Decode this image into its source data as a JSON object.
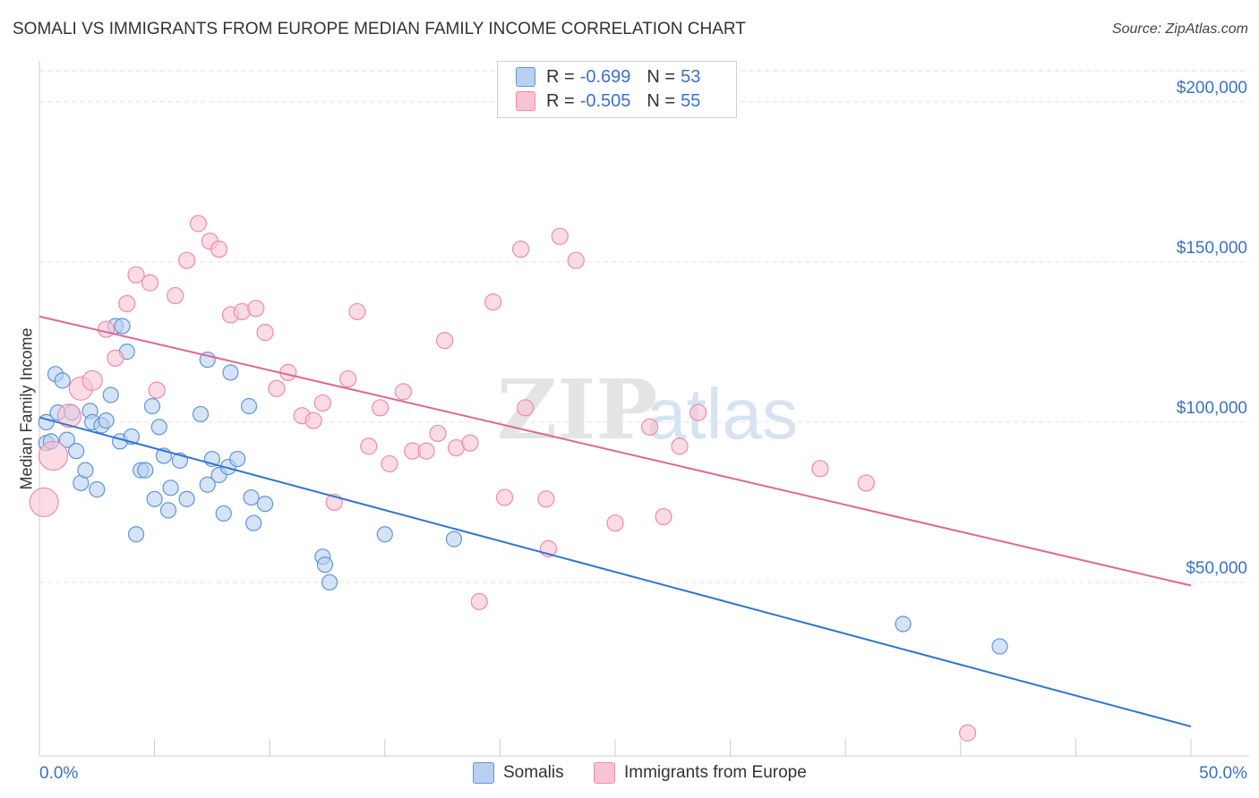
{
  "title": "SOMALI VS IMMIGRANTS FROM EUROPE MEDIAN FAMILY INCOME CORRELATION CHART",
  "source": "Source: ZipAtlas.com",
  "watermark": {
    "zip": "ZIP",
    "atlas": "atlas"
  },
  "legend": {
    "rows": [
      {
        "r_label": "R =",
        "r_value": "-0.699",
        "n_label": "N =",
        "n_value": "53"
      },
      {
        "r_label": "R =",
        "r_value": "-0.505",
        "n_label": "N =",
        "n_value": "55"
      }
    ]
  },
  "colors": {
    "somalis_fill": "#b9d0f2",
    "somalis_stroke": "#5f95d9",
    "somalis_line": "#2f74d0",
    "europe_fill": "#f8c4d4",
    "europe_stroke": "#ee8aaa",
    "europe_line": "#e06890",
    "axis_label": "#3a72c4",
    "grid": "#e2e2e2"
  },
  "chart_data": {
    "type": "scatter",
    "title": "SOMALI VS IMMIGRANTS FROM EUROPE MEDIAN FAMILY INCOME CORRELATION CHART",
    "xlabel": "",
    "ylabel": "Median Family Income",
    "xlim": [
      0,
      50
    ],
    "ylim": [
      0,
      210000
    ],
    "x_tick_labels": [
      "0.0%",
      "50.0%"
    ],
    "y_ticks": [
      50000,
      100000,
      150000,
      200000
    ],
    "y_tick_labels": [
      "$50,000",
      "$100,000",
      "$150,000",
      "$200,000"
    ],
    "grid": true,
    "legend_position": "top-center",
    "series": [
      {
        "name": "Somalis",
        "color": "#5f95d9",
        "trendline": {
          "x": [
            0.0,
            50.0
          ],
          "y": [
            101500,
            5000
          ]
        },
        "points": [
          {
            "x": 0.3,
            "y": 93500
          },
          {
            "x": 0.3,
            "y": 100000
          },
          {
            "x": 0.5,
            "y": 94000
          },
          {
            "x": 0.7,
            "y": 115000
          },
          {
            "x": 0.8,
            "y": 103000
          },
          {
            "x": 1.0,
            "y": 113000
          },
          {
            "x": 1.2,
            "y": 94500
          },
          {
            "x": 1.4,
            "y": 103000
          },
          {
            "x": 1.6,
            "y": 91000
          },
          {
            "x": 1.8,
            "y": 81000
          },
          {
            "x": 2.0,
            "y": 85000
          },
          {
            "x": 2.2,
            "y": 103500
          },
          {
            "x": 2.3,
            "y": 100000
          },
          {
            "x": 2.5,
            "y": 79000
          },
          {
            "x": 2.7,
            "y": 99000
          },
          {
            "x": 2.9,
            "y": 100500
          },
          {
            "x": 3.1,
            "y": 108500
          },
          {
            "x": 3.3,
            "y": 130000
          },
          {
            "x": 3.5,
            "y": 94000
          },
          {
            "x": 3.6,
            "y": 130000
          },
          {
            "x": 3.8,
            "y": 122000
          },
          {
            "x": 4.0,
            "y": 95500
          },
          {
            "x": 4.2,
            "y": 65000
          },
          {
            "x": 4.4,
            "y": 85000
          },
          {
            "x": 4.6,
            "y": 85000
          },
          {
            "x": 4.9,
            "y": 105000
          },
          {
            "x": 5.0,
            "y": 76000
          },
          {
            "x": 5.2,
            "y": 98500
          },
          {
            "x": 5.4,
            "y": 89500
          },
          {
            "x": 5.6,
            "y": 72500
          },
          {
            "x": 5.7,
            "y": 79500
          },
          {
            "x": 6.1,
            "y": 88000
          },
          {
            "x": 6.4,
            "y": 76000
          },
          {
            "x": 7.0,
            "y": 102500
          },
          {
            "x": 7.3,
            "y": 80500
          },
          {
            "x": 7.5,
            "y": 88500
          },
          {
            "x": 7.8,
            "y": 83500
          },
          {
            "x": 8.0,
            "y": 71500
          },
          {
            "x": 8.2,
            "y": 86000
          },
          {
            "x": 8.3,
            "y": 115500
          },
          {
            "x": 8.6,
            "y": 88500
          },
          {
            "x": 9.1,
            "y": 105000
          },
          {
            "x": 9.2,
            "y": 76500
          },
          {
            "x": 9.3,
            "y": 68500
          },
          {
            "x": 9.8,
            "y": 74500
          },
          {
            "x": 12.3,
            "y": 58000
          },
          {
            "x": 12.4,
            "y": 55500
          },
          {
            "x": 12.6,
            "y": 50000
          },
          {
            "x": 15.0,
            "y": 65000
          },
          {
            "x": 18.0,
            "y": 63500
          },
          {
            "x": 37.5,
            "y": 37000
          },
          {
            "x": 41.7,
            "y": 30000
          },
          {
            "x": 7.3,
            "y": 119500
          }
        ]
      },
      {
        "name": "Immigrants from Europe",
        "color": "#ee8aaa",
        "trendline": {
          "x": [
            0.0,
            50.0
          ],
          "y": [
            133000,
            49000
          ]
        },
        "points": [
          {
            "x": 0.2,
            "y": 75000,
            "r": 16
          },
          {
            "x": 0.6,
            "y": 89500,
            "r": 16
          },
          {
            "x": 1.3,
            "y": 102000,
            "r": 13
          },
          {
            "x": 1.8,
            "y": 110500,
            "r": 13
          },
          {
            "x": 2.3,
            "y": 113000,
            "r": 11
          },
          {
            "x": 2.9,
            "y": 129000,
            "r": 9
          },
          {
            "x": 3.3,
            "y": 120000,
            "r": 9
          },
          {
            "x": 3.8,
            "y": 137000,
            "r": 9
          },
          {
            "x": 4.2,
            "y": 146000,
            "r": 9
          },
          {
            "x": 4.8,
            "y": 143500,
            "r": 9
          },
          {
            "x": 5.1,
            "y": 110000,
            "r": 9
          },
          {
            "x": 5.9,
            "y": 139500,
            "r": 9
          },
          {
            "x": 6.4,
            "y": 150500,
            "r": 9
          },
          {
            "x": 6.9,
            "y": 162000,
            "r": 9
          },
          {
            "x": 7.4,
            "y": 156500,
            "r": 9
          },
          {
            "x": 7.8,
            "y": 154000,
            "r": 9
          },
          {
            "x": 8.3,
            "y": 133500,
            "r": 9
          },
          {
            "x": 8.8,
            "y": 134500,
            "r": 9
          },
          {
            "x": 9.4,
            "y": 135500,
            "r": 9
          },
          {
            "x": 9.8,
            "y": 128000,
            "r": 9
          },
          {
            "x": 10.3,
            "y": 110500,
            "r": 9
          },
          {
            "x": 10.8,
            "y": 115500,
            "r": 9
          },
          {
            "x": 11.4,
            "y": 102000,
            "r": 9
          },
          {
            "x": 11.9,
            "y": 100500,
            "r": 9
          },
          {
            "x": 12.3,
            "y": 106000,
            "r": 9
          },
          {
            "x": 12.8,
            "y": 75000,
            "r": 9
          },
          {
            "x": 13.4,
            "y": 113500,
            "r": 9
          },
          {
            "x": 13.8,
            "y": 134500,
            "r": 9
          },
          {
            "x": 14.3,
            "y": 92500,
            "r": 9
          },
          {
            "x": 14.8,
            "y": 104500,
            "r": 9
          },
          {
            "x": 15.2,
            "y": 87000,
            "r": 9
          },
          {
            "x": 15.8,
            "y": 109500,
            "r": 9
          },
          {
            "x": 16.2,
            "y": 91000,
            "r": 9
          },
          {
            "x": 16.8,
            "y": 91000,
            "r": 9
          },
          {
            "x": 17.3,
            "y": 96500,
            "r": 9
          },
          {
            "x": 17.6,
            "y": 125500,
            "r": 9
          },
          {
            "x": 18.1,
            "y": 92000,
            "r": 9
          },
          {
            "x": 18.7,
            "y": 93500,
            "r": 9
          },
          {
            "x": 19.1,
            "y": 44000,
            "r": 9
          },
          {
            "x": 19.7,
            "y": 137500,
            "r": 9
          },
          {
            "x": 20.2,
            "y": 76500,
            "r": 9
          },
          {
            "x": 20.9,
            "y": 154000,
            "r": 9
          },
          {
            "x": 21.1,
            "y": 104500,
            "r": 9
          },
          {
            "x": 22.0,
            "y": 76000,
            "r": 9
          },
          {
            "x": 22.1,
            "y": 60500,
            "r": 9
          },
          {
            "x": 22.6,
            "y": 158000,
            "r": 9
          },
          {
            "x": 23.3,
            "y": 150500,
            "r": 9
          },
          {
            "x": 25.0,
            "y": 68500,
            "r": 9
          },
          {
            "x": 26.5,
            "y": 98500,
            "r": 9
          },
          {
            "x": 27.1,
            "y": 70500,
            "r": 9
          },
          {
            "x": 27.8,
            "y": 92500,
            "r": 9
          },
          {
            "x": 28.6,
            "y": 103000,
            "r": 9
          },
          {
            "x": 33.9,
            "y": 85500,
            "r": 9
          },
          {
            "x": 35.9,
            "y": 81000,
            "r": 9
          },
          {
            "x": 40.3,
            "y": 3000,
            "r": 9
          }
        ]
      }
    ]
  }
}
